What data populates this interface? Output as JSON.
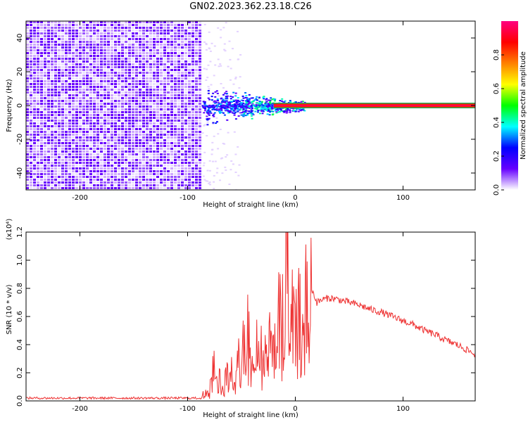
{
  "page": {
    "title": "GN02.2023.362.23.18.C26"
  },
  "chart_data": [
    {
      "type": "heatmap",
      "title": "GN02.2023.362.23.18.C26",
      "xlabel": "Height of straight line (km)",
      "ylabel": "Frequency (Hz)",
      "xlim": [
        -250,
        167
      ],
      "ylim": [
        -50,
        50
      ],
      "x_ticks": [
        "-200",
        "-100",
        "0",
        "100"
      ],
      "x_tick_values": [
        -200,
        -100,
        0,
        100
      ],
      "y_ticks": [
        "-40",
        "-20",
        "0",
        "20",
        "40"
      ],
      "y_tick_values": [
        -40,
        -20,
        0,
        20,
        40
      ],
      "colorbar": {
        "label": "Normalized spectral amplitude",
        "range": [
          0,
          1
        ],
        "ticks": [
          "0.0",
          "0.2",
          "0.4",
          "0.6",
          "0.8"
        ],
        "tick_values": [
          0.0,
          0.2,
          0.4,
          0.6,
          0.8
        ],
        "colormap": "rainbow",
        "colors": [
          "#ffffff",
          "#6600ff",
          "#0000ff",
          "#00ffff",
          "#00ff00",
          "#ffff00",
          "#ff8000",
          "#ff0000",
          "#ff0080"
        ]
      },
      "regions": [
        {
          "name": "broadband noise",
          "x": [
            -250,
            -87
          ],
          "y": [
            -50,
            50
          ],
          "amplitude": 0.05
        },
        {
          "name": "transition",
          "x": [
            -87,
            8
          ],
          "y": [
            -12,
            12
          ],
          "amplitude": 0.3
        },
        {
          "name": "narrow signal line",
          "x": [
            -20,
            167
          ],
          "y": [
            -1,
            1
          ],
          "amplitude": 0.95
        }
      ],
      "grid": false
    },
    {
      "type": "line",
      "xlabel": "Height of straight line (km)",
      "ylabel": "SNR (10 * v/v)",
      "y_multiplier": "(x10⁴)",
      "xlim": [
        -250,
        167
      ],
      "ylim": [
        0,
        1.2
      ],
      "x_ticks": [
        "-200",
        "-100",
        "0",
        "100"
      ],
      "x_tick_values": [
        -200,
        -100,
        0,
        100
      ],
      "y_ticks": [
        "0.0",
        "0.2",
        "0.4",
        "0.6",
        "0.8",
        "1.0",
        "1.2"
      ],
      "y_tick_values": [
        0.0,
        0.2,
        0.4,
        0.6,
        0.8,
        1.0,
        1.2
      ],
      "series": [
        {
          "color": "#ee3333",
          "x": [
            -250,
            -200,
            -150,
            -100,
            -88,
            -80,
            -75,
            -70,
            -60,
            -50,
            -45,
            -40,
            -35,
            -30,
            -25,
            -20,
            -15,
            -12,
            -10,
            -7,
            -5,
            0,
            5,
            10,
            15,
            20,
            25,
            30,
            35,
            40,
            50,
            60,
            70,
            80,
            90,
            100,
            110,
            120,
            130,
            140,
            150,
            160,
            167
          ],
          "y": [
            0.02,
            0.02,
            0.02,
            0.02,
            0.02,
            0.12,
            0.3,
            0.15,
            0.2,
            0.35,
            0.55,
            0.35,
            0.5,
            0.3,
            0.55,
            0.5,
            0.8,
            0.6,
            0.7,
            1.2,
            0.6,
            0.65,
            0.6,
            0.75,
            0.8,
            0.7,
            0.72,
            0.73,
            0.73,
            0.72,
            0.7,
            0.68,
            0.65,
            0.63,
            0.6,
            0.57,
            0.54,
            0.5,
            0.47,
            0.43,
            0.4,
            0.36,
            0.33
          ]
        }
      ],
      "grid": false
    }
  ]
}
